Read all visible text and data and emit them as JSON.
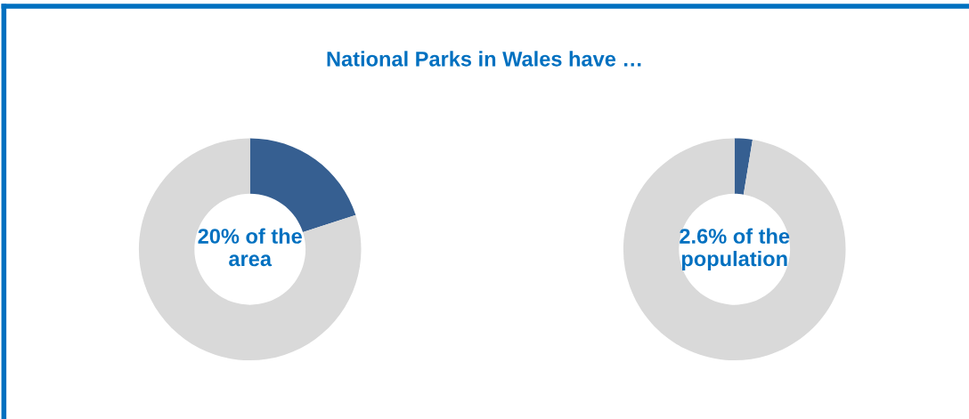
{
  "chart_data": [
    {
      "type": "donut",
      "title": "National Parks in Wales have …",
      "categories": [
        null,
        null
      ],
      "values": [
        20,
        80
      ],
      "colors": [
        "#365f91",
        "#d9d9d9"
      ],
      "annotations": [
        "20% of the\narea"
      ]
    },
    {
      "type": "donut",
      "categories": [
        null,
        null
      ],
      "values": [
        2.6,
        97.4
      ],
      "colors": [
        "#365f91",
        "#d9d9d9"
      ],
      "annotations": [
        "2.6% of the\npopulation"
      ]
    }
  ]
}
